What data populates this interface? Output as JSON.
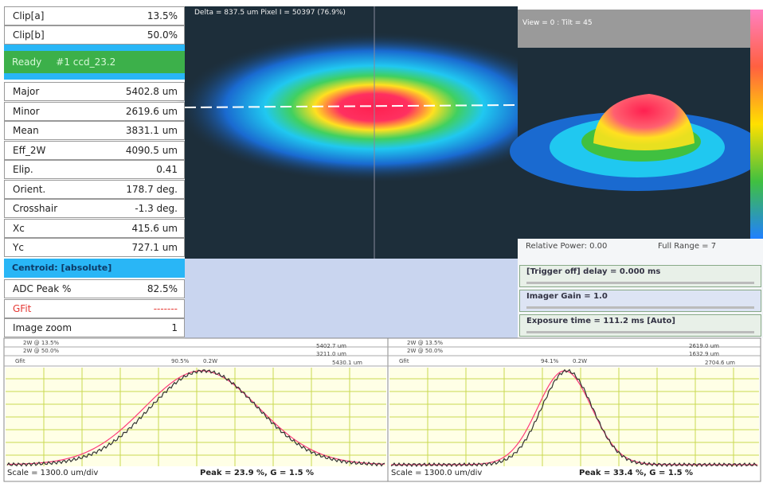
{
  "params": [
    [
      "Clip[a]",
      "13.5%"
    ],
    [
      "Clip[b]",
      "50.0%"
    ]
  ],
  "status": [
    "Ready",
    "#1 ccd_23.2"
  ],
  "measurements": [
    [
      "Major",
      "5402.8 um"
    ],
    [
      "Minor",
      "2619.6 um"
    ],
    [
      "Mean",
      "3831.1 um"
    ],
    [
      "Eff_2W",
      "4090.5 um"
    ],
    [
      "Elip.",
      "0.41"
    ],
    [
      "Orient.",
      "178.7 deg."
    ],
    [
      "Crosshair",
      "-1.3 deg."
    ],
    [
      "Xc",
      "415.6 um"
    ],
    [
      "Yc",
      "727.1 um"
    ]
  ],
  "centroid_mode": "Centroid: [absolute]",
  "extras": [
    [
      "ADC Peak %",
      "82.5%"
    ],
    [
      "GFit",
      "-------"
    ],
    [
      "Image zoom",
      "1"
    ]
  ],
  "beam_header": "Delta = 837.5 um Pixel I = 50397 (76.9%)",
  "view_header": "View = 0 : Tilt = 45",
  "power": {
    "relative": "Relative Power: 0.00",
    "range": "Full Range = 7"
  },
  "controls": [
    "[Trigger off] delay = 0.000 ms",
    "Imager Gain = 1.0",
    "Exposure time = 111.2 ms [Auto]"
  ],
  "profiles": [
    {
      "clip_a": "2W @ 13.5%",
      "clip_a_value": "5402.7 um",
      "clip_b": "2W @ 50.0%",
      "clip_b_value": "3211.0 um",
      "gfit": "Gfit",
      "gfit_pct": "90.5%",
      "gfit_w": "0.2W",
      "gfit_value": "5430.1 um",
      "scale": "Scale = 1300.0 um/div",
      "peak": "Peak = 23.9 %, G = 1.5 %"
    },
    {
      "clip_a": "2W @ 13.5%",
      "clip_a_value": "2619.0 um",
      "clip_b": "2W @ 50.0%",
      "clip_b_value": "1632.9 um",
      "gfit": "Gfit",
      "gfit_pct": "94.1%",
      "gfit_w": "0.2W",
      "gfit_value": "2704.6 um",
      "scale": "Scale = 1300.0 um/div",
      "peak": "Peak = 33.4 %, G = 1.5 %"
    }
  ]
}
